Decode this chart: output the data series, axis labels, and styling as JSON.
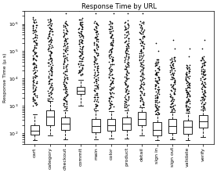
{
  "title": "Response Time by URL",
  "ylabel": "Response Time (μ s)",
  "categories": [
    "cart",
    "category",
    "checkout",
    "commit",
    "main",
    "color",
    "product",
    "detail",
    "sign in",
    "sign out",
    "validate",
    "verify"
  ],
  "ylim_log": [
    40,
    3000000
  ],
  "box_data": {
    "cart": {
      "q1": 90,
      "med": 120,
      "q3": 200,
      "whislo": 55,
      "whishi": 500,
      "fliers_high_log": [
        3.0,
        3.1,
        3.2,
        3.3,
        3.4,
        3.5,
        3.6,
        3.7,
        3.8,
        3.9,
        4.0,
        4.1,
        4.2,
        4.3,
        4.4,
        4.5,
        4.6,
        4.7,
        4.8,
        4.9,
        5.0,
        5.1,
        5.2,
        5.3,
        5.4,
        5.5,
        5.6,
        5.7,
        5.8,
        5.9,
        6.0,
        6.1,
        6.2
      ]
    },
    "category": {
      "q1": 200,
      "med": 400,
      "q3": 700,
      "whislo": 80,
      "whishi": 1500,
      "fliers_high_log": [
        3.2,
        3.3,
        3.4,
        3.5,
        3.6,
        3.7,
        3.8,
        3.9,
        4.0,
        4.1,
        4.2,
        4.3,
        4.4,
        4.5,
        4.6,
        4.7,
        4.8,
        4.9,
        5.0,
        5.1,
        5.2,
        5.3,
        5.4,
        5.5,
        5.6,
        5.7,
        5.8,
        5.9,
        6.0,
        6.1,
        6.2
      ]
    },
    "checkout": {
      "q1": 130,
      "med": 220,
      "q3": 380,
      "whislo": 60,
      "whishi": 700,
      "fliers_high_log": [
        2.9,
        3.0,
        3.1,
        3.2,
        3.3,
        3.4,
        3.5,
        3.6,
        3.7,
        3.8,
        3.9,
        4.0,
        4.1,
        4.2,
        4.3,
        4.5,
        4.7,
        4.9,
        5.1,
        5.3,
        5.5,
        5.7,
        5.9,
        6.1
      ]
    },
    "commit": {
      "q1": 2800,
      "med": 3500,
      "q3": 5000,
      "whislo": 1000,
      "whishi": 9000,
      "fliers_high_log": [
        4.1,
        4.2,
        4.3,
        4.4,
        4.5,
        4.6,
        4.7,
        4.8,
        4.9,
        5.0,
        5.1,
        5.2,
        5.3,
        5.4,
        5.5,
        5.6,
        5.7,
        5.8,
        5.9,
        6.0,
        6.1,
        6.2
      ]
    },
    "main": {
      "q1": 110,
      "med": 180,
      "q3": 320,
      "whislo": 60,
      "whishi": 700,
      "fliers_high_log": [
        2.9,
        3.0,
        3.1,
        3.2,
        3.3,
        3.4,
        3.5,
        3.6,
        3.7,
        3.8,
        3.9,
        4.0,
        4.1,
        4.2,
        4.3,
        4.4,
        4.5,
        4.6,
        4.7,
        4.8,
        4.9,
        5.0,
        5.1,
        5.2,
        5.3,
        5.4,
        5.5,
        5.6,
        5.7,
        5.8,
        5.9,
        6.0,
        6.1
      ]
    },
    "color": {
      "q1": 120,
      "med": 200,
      "q3": 340,
      "whislo": 65,
      "whishi": 650,
      "fliers_high_log": [
        2.9,
        3.0,
        3.1,
        3.2,
        3.3,
        3.4,
        3.5,
        3.6,
        3.7,
        3.8,
        3.9,
        4.0,
        4.1,
        4.2,
        4.3,
        4.4,
        4.5,
        4.6,
        4.7,
        4.8,
        4.9,
        5.0,
        5.1,
        5.2,
        5.3,
        5.4,
        5.5,
        5.6,
        5.7,
        5.8,
        5.9,
        6.0,
        6.1
      ]
    },
    "product": {
      "q1": 130,
      "med": 220,
      "q3": 380,
      "whislo": 65,
      "whishi": 700,
      "fliers_high_log": [
        2.9,
        3.0,
        3.1,
        3.2,
        3.3,
        3.4,
        3.5,
        3.6,
        3.7,
        3.8,
        3.9,
        4.0,
        4.1,
        4.2,
        4.3,
        4.4,
        4.5,
        4.6,
        4.7,
        4.8,
        4.9,
        5.0,
        5.1,
        5.2,
        5.3,
        5.4,
        5.5,
        5.6,
        5.7,
        5.8,
        5.9,
        6.0,
        6.1
      ]
    },
    "detail": {
      "q1": 200,
      "med": 330,
      "q3": 580,
      "whislo": 80,
      "whishi": 900,
      "fliers_high_log": [
        3.0,
        3.1,
        3.2,
        3.3,
        3.4,
        3.5,
        3.6,
        3.7,
        3.8,
        3.9,
        4.0,
        4.1,
        4.2,
        4.3,
        4.4,
        4.5,
        4.6,
        4.7,
        4.8,
        4.9,
        5.0,
        5.1,
        5.2,
        5.3,
        5.4,
        5.5,
        5.6,
        5.7,
        5.8,
        5.9,
        6.0,
        6.1
      ]
    },
    "sign in": {
      "q1": 80,
      "med": 130,
      "q3": 250,
      "whislo": 55,
      "whishi": 500,
      "fliers_high_log": [
        2.7,
        2.8,
        2.9,
        3.0,
        3.1,
        3.2,
        3.3,
        3.4,
        3.5,
        3.6,
        3.7,
        3.8,
        3.9,
        4.0,
        4.1,
        4.2,
        4.3,
        4.4,
        4.5,
        4.6,
        4.7
      ]
    },
    "sign out": {
      "q1": 100,
      "med": 180,
      "q3": 340,
      "whislo": 60,
      "whishi": 600,
      "fliers_high_log": [
        2.8,
        2.9,
        3.0,
        3.1,
        3.2,
        3.3,
        3.4,
        3.5,
        3.6,
        3.7,
        3.8,
        3.9,
        4.0,
        4.1,
        4.2,
        4.3,
        4.4,
        4.5,
        4.6,
        4.7,
        4.8
      ]
    },
    "validate": {
      "q1": 95,
      "med": 165,
      "q3": 290,
      "whislo": 55,
      "whishi": 550,
      "fliers_high_log": [
        2.8,
        2.9,
        3.0,
        3.1,
        3.2,
        3.3,
        3.4,
        3.5,
        3.6,
        3.7,
        3.8,
        3.9,
        4.0,
        4.1,
        4.2,
        4.3,
        4.4,
        4.5
      ]
    },
    "verify": {
      "q1": 160,
      "med": 270,
      "q3": 450,
      "whislo": 70,
      "whishi": 750,
      "fliers_high_log": [
        2.9,
        3.0,
        3.1,
        3.2,
        3.3,
        3.4,
        3.5,
        3.6,
        3.7,
        3.8,
        3.9,
        4.0,
        4.1,
        4.2,
        4.3,
        4.4,
        4.5,
        4.6,
        4.7,
        4.8
      ]
    }
  },
  "flier_density_per_log_unit": 30,
  "box_color": "white",
  "flier_marker": "+",
  "flier_ms": 2.0,
  "background": "white"
}
